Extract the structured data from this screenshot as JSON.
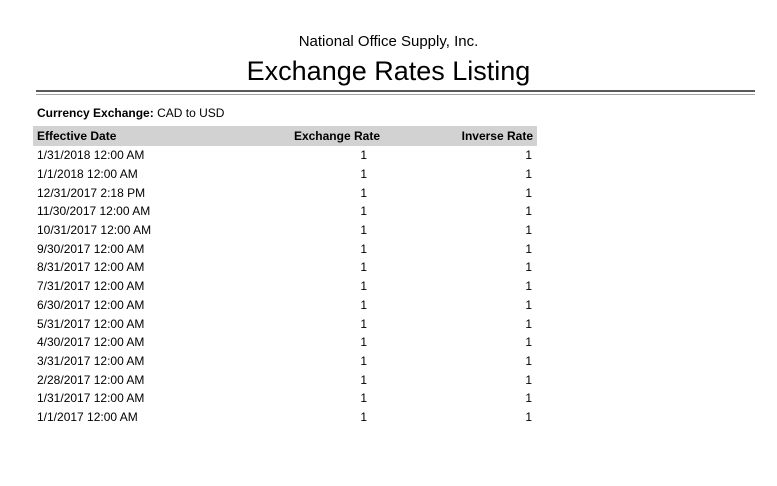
{
  "report": {
    "company": "National Office Supply, Inc.",
    "title": "Exchange Rates Listing"
  },
  "filter": {
    "label": "Currency Exchange:",
    "value": "CAD to USD"
  },
  "table": {
    "columns": {
      "date": "Effective Date",
      "rate": "Exchange Rate",
      "inverse": "Inverse Rate"
    },
    "rows": [
      {
        "date": "1/31/2018 12:00 AM",
        "rate": "1",
        "inverse": "1"
      },
      {
        "date": "1/1/2018 12:00 AM",
        "rate": "1",
        "inverse": "1"
      },
      {
        "date": "12/31/2017 2:18 PM",
        "rate": "1",
        "inverse": "1"
      },
      {
        "date": "11/30/2017 12:00 AM",
        "rate": "1",
        "inverse": "1"
      },
      {
        "date": "10/31/2017 12:00 AM",
        "rate": "1",
        "inverse": "1"
      },
      {
        "date": "9/30/2017 12:00 AM",
        "rate": "1",
        "inverse": "1"
      },
      {
        "date": "8/31/2017 12:00 AM",
        "rate": "1",
        "inverse": "1"
      },
      {
        "date": "7/31/2017 12:00 AM",
        "rate": "1",
        "inverse": "1"
      },
      {
        "date": "6/30/2017 12:00 AM",
        "rate": "1",
        "inverse": "1"
      },
      {
        "date": "5/31/2017 12:00 AM",
        "rate": "1",
        "inverse": "1"
      },
      {
        "date": "4/30/2017 12:00 AM",
        "rate": "1",
        "inverse": "1"
      },
      {
        "date": "3/31/2017 12:00 AM",
        "rate": "1",
        "inverse": "1"
      },
      {
        "date": "2/28/2017 12:00 AM",
        "rate": "1",
        "inverse": "1"
      },
      {
        "date": "1/31/2017 12:00 AM",
        "rate": "1",
        "inverse": "1"
      },
      {
        "date": "1/1/2017 12:00 AM",
        "rate": "1",
        "inverse": "1"
      }
    ]
  },
  "colors": {
    "header_bg": "#d2d2d2",
    "rule_dark": "#595959",
    "rule_light": "#a3a3a3",
    "text": "#000000"
  }
}
